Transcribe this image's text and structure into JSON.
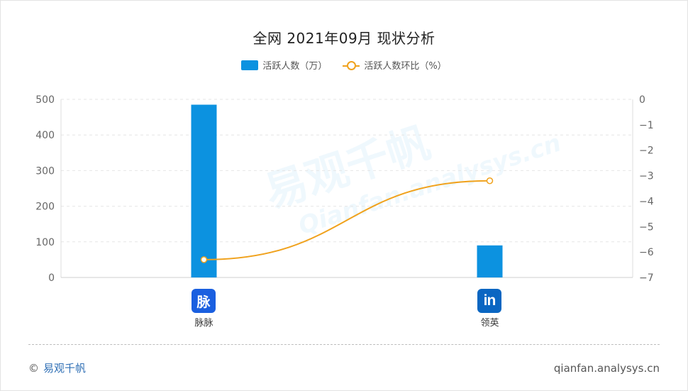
{
  "title": "全网 2021年09月 现状分析",
  "legend": {
    "bar_label": "活跃人数（万）",
    "line_label": "活跃人数环比（%）"
  },
  "colors": {
    "bar": "#0c92e0",
    "line": "#f0a21d",
    "grid": "#e6e6e6",
    "axis_text": "#666666"
  },
  "watermark": {
    "cn": "易观千帆",
    "en": "Qianfan.analysys.cn"
  },
  "chart_data": {
    "type": "bar",
    "categories": [
      "脉脉",
      "领英"
    ],
    "series": [
      {
        "name": "活跃人数（万）",
        "type": "bar",
        "axis": "left",
        "values": [
          485,
          90
        ]
      },
      {
        "name": "活跃人数环比（%）",
        "type": "line",
        "axis": "right",
        "values": [
          -6.3,
          -3.2
        ]
      }
    ],
    "ylim": [
      0,
      500
    ],
    "y_ticks": [
      "0",
      "100",
      "200",
      "300",
      "400",
      "500"
    ],
    "y2lim": [
      -7,
      0
    ],
    "y2_ticks": [
      "0",
      "−1",
      "−2",
      "−3",
      "−4",
      "−5",
      "−6",
      "−7"
    ],
    "grid": true,
    "legend_position": "top-center"
  },
  "category_icons": [
    {
      "name": "maimai-icon",
      "glyph": "脉"
    },
    {
      "name": "linkedin-icon",
      "glyph": "in"
    }
  ],
  "footer": {
    "copyright": "©",
    "brand": "易观千帆",
    "site": "qianfan.analysys.cn"
  }
}
